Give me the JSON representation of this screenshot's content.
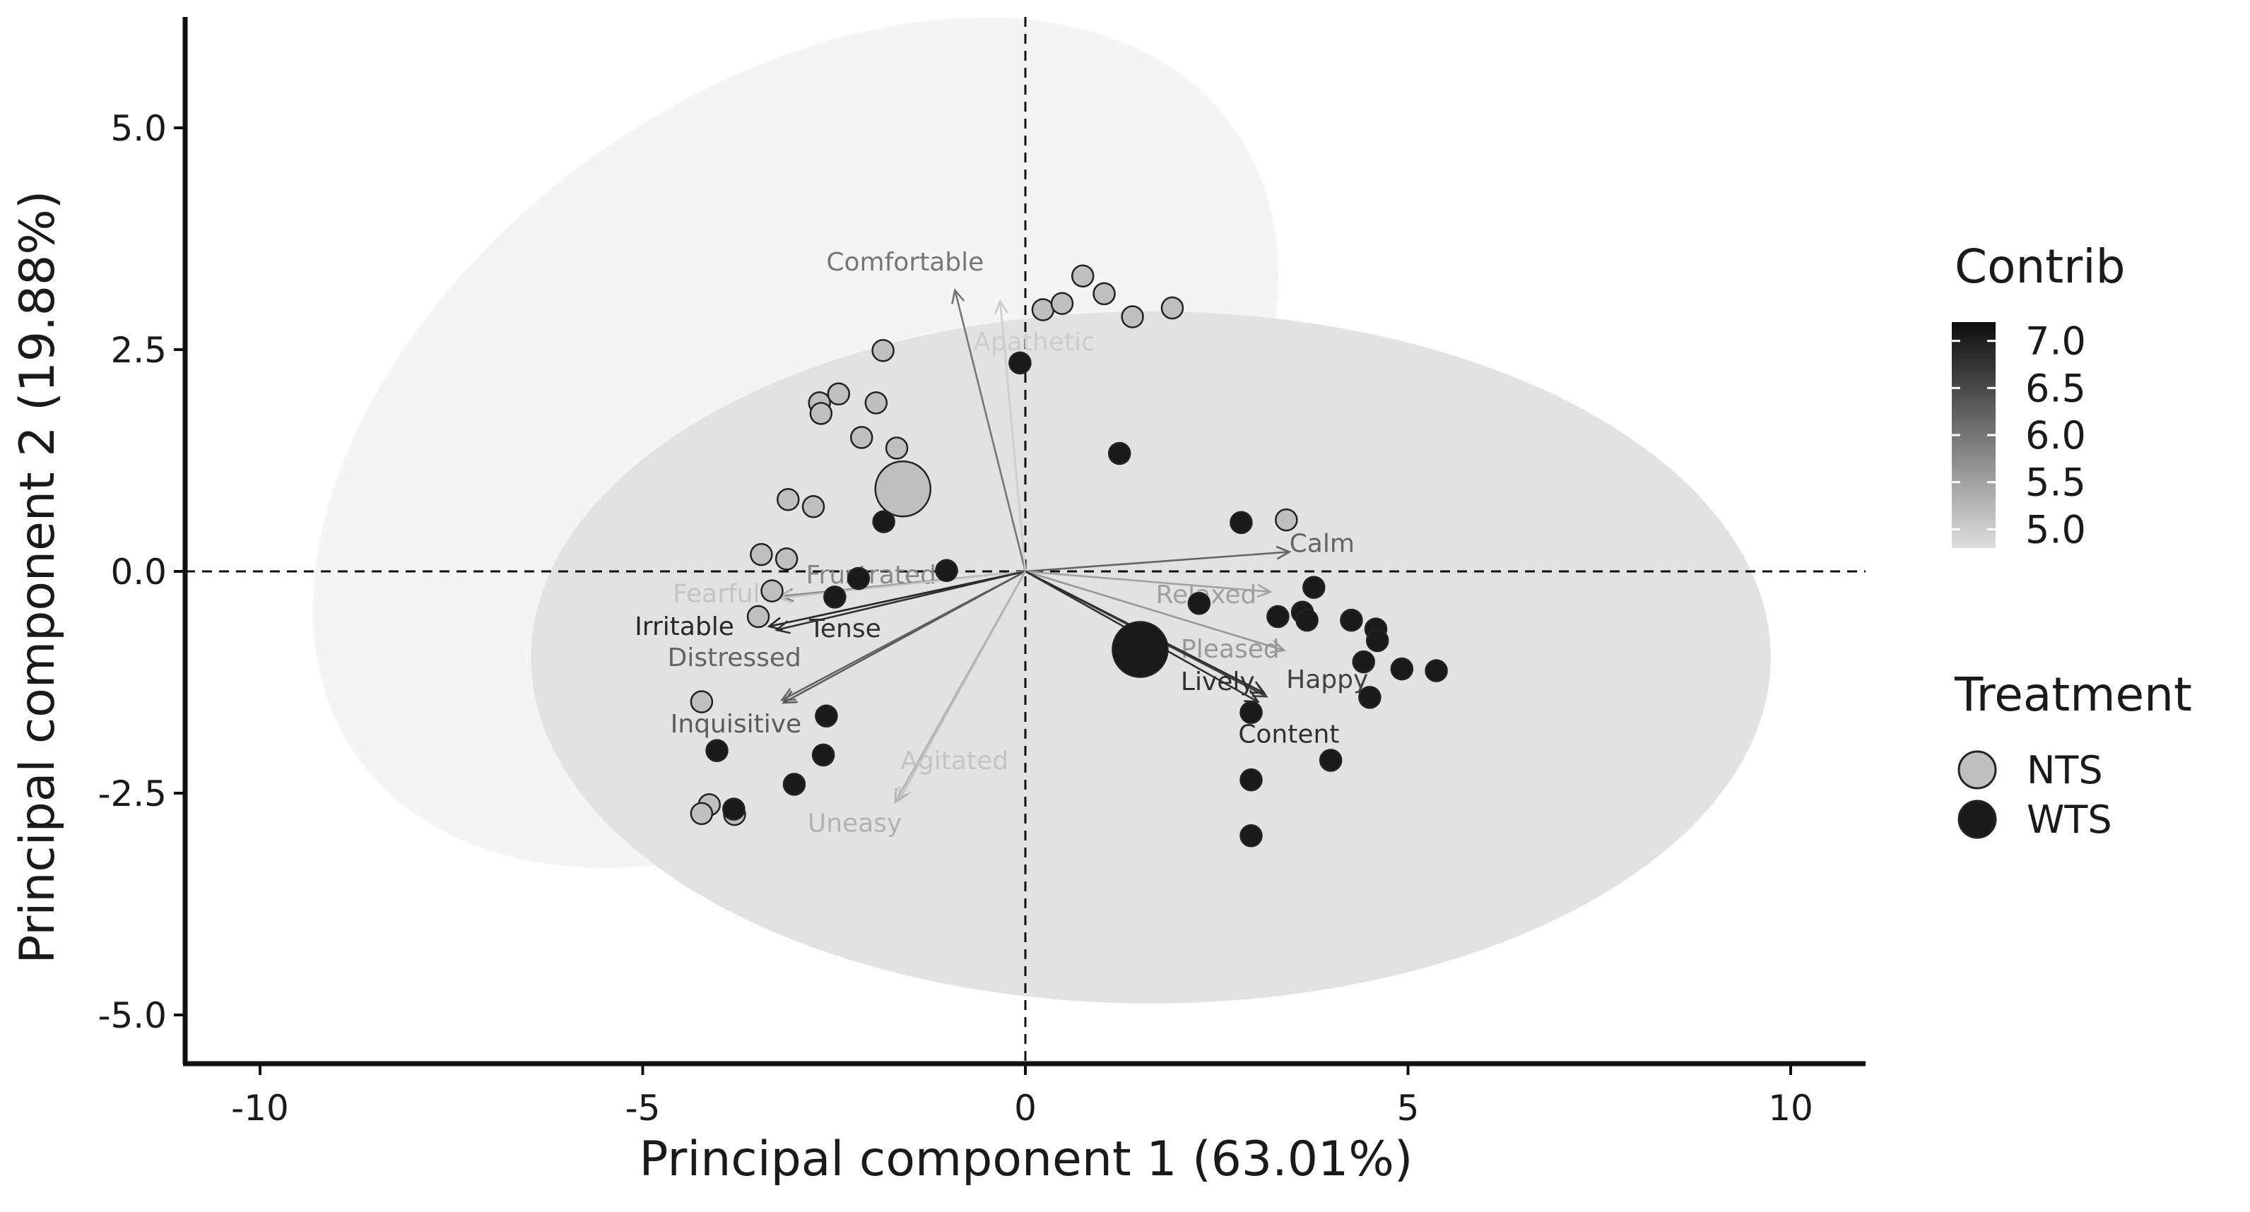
{
  "chart_data": {
    "type": "scatter",
    "subtype": "pca-biplot",
    "xlabel": "Principal component 1 (63.01%)",
    "ylabel": "Principal component 2 (19.88%)",
    "xlim": [
      -11,
      11
    ],
    "ylim": [
      -5.5,
      6.2
    ],
    "x_ticks": [
      -10,
      -5,
      0,
      5,
      10
    ],
    "x_tick_labels": [
      "-10",
      "-5",
      "0",
      "5",
      "10"
    ],
    "y_ticks": [
      5.0,
      2.5,
      0.0,
      -2.5,
      -5.0
    ],
    "y_tick_labels": [
      "5.0",
      "2.5",
      "0.0",
      "-2.5",
      "-5.0"
    ],
    "grid": false,
    "reference_lines": [
      "x = 0 (dashed)",
      "y = 0 (dashed)"
    ],
    "ellipses": [
      {
        "group": "NTS",
        "center": [
          -3.0,
          1.45
        ],
        "rx": 7.05,
        "ry": 3.95,
        "rotation_deg": 36,
        "fill": "#f3f4f3"
      },
      {
        "group": "WTS",
        "center": [
          1.64,
          -0.97
        ],
        "rx": 8.1,
        "ry": 3.9,
        "rotation_deg": 0,
        "fill": "#e2e2e2"
      }
    ],
    "legend_contrib": {
      "title": "Contrib",
      "labels": [
        "7.0",
        "6.5",
        "6.0",
        "5.5",
        "5.0"
      ],
      "range": [
        4.8,
        7.2
      ],
      "color_high": "#0d0d0d",
      "color_low": "#dedede"
    },
    "legend_treatment": {
      "title": "Treatment",
      "items": [
        {
          "label": "NTS",
          "color": "#bfbfbf"
        },
        {
          "label": "WTS",
          "color": "#1a1a1a"
        }
      ]
    },
    "variables": [
      {
        "name": "Comfortable",
        "x": -0.92,
        "y": 3.17,
        "contrib": 6.0
      },
      {
        "name": "Apathetic",
        "x": -0.33,
        "y": 3.05,
        "contrib": 5.0
      },
      {
        "name": "Calm",
        "x": 3.45,
        "y": 0.22,
        "contrib": 6.2
      },
      {
        "name": "Relaxed",
        "x": 3.2,
        "y": -0.23,
        "contrib": 5.5
      },
      {
        "name": "Pleased",
        "x": 3.38,
        "y": -0.89,
        "contrib": 5.6
      },
      {
        "name": "Happy",
        "x": 3.15,
        "y": -1.41,
        "contrib": 6.6
      },
      {
        "name": "Lively",
        "x": 3.12,
        "y": -1.37,
        "contrib": 6.8
      },
      {
        "name": "Content",
        "x": 3.04,
        "y": -1.47,
        "contrib": 6.8
      },
      {
        "name": "Frustrated",
        "x": -3.2,
        "y": -0.28,
        "contrib": 5.8
      },
      {
        "name": "Fearful",
        "x": -3.22,
        "y": -0.3,
        "contrib": 5.1
      },
      {
        "name": "Irritable",
        "x": -3.35,
        "y": -0.62,
        "contrib": 6.9
      },
      {
        "name": "Tense",
        "x": -3.25,
        "y": -0.66,
        "contrib": 6.8
      },
      {
        "name": "Distressed",
        "x": -3.18,
        "y": -1.45,
        "contrib": 6.2
      },
      {
        "name": "Inquisitive",
        "x": -3.16,
        "y": -1.48,
        "contrib": 6.3
      },
      {
        "name": "Agitated",
        "x": -1.65,
        "y": -2.58,
        "contrib": 5.1
      },
      {
        "name": "Uneasy",
        "x": -1.7,
        "y": -2.6,
        "contrib": 5.3
      }
    ],
    "series": [
      {
        "name": "NTS",
        "color": "#bfbfbf",
        "points": [
          [
            0.75,
            3.33
          ],
          [
            0.23,
            2.95
          ],
          [
            0.48,
            3.02
          ],
          [
            1.03,
            3.13
          ],
          [
            1.4,
            2.87
          ],
          [
            1.92,
            2.97
          ],
          [
            -1.86,
            2.49
          ],
          [
            -2.69,
            1.9
          ],
          [
            -2.44,
            2.0
          ],
          [
            -1.95,
            1.9
          ],
          [
            -2.67,
            1.78
          ],
          [
            -2.14,
            1.51
          ],
          [
            -1.68,
            1.39
          ],
          [
            -1.6,
            0.93
          ],
          [
            -3.1,
            0.81
          ],
          [
            -2.77,
            0.73
          ],
          [
            3.41,
            0.58
          ],
          [
            -3.45,
            0.19
          ],
          [
            -3.12,
            0.14
          ],
          [
            -3.31,
            -0.22
          ],
          [
            -3.49,
            -0.51
          ],
          [
            -4.23,
            -1.47
          ],
          [
            -4.13,
            -2.63
          ],
          [
            -4.23,
            -2.73
          ],
          [
            -3.8,
            -2.74
          ]
        ],
        "sizes": [
          1,
          1,
          1,
          1,
          1,
          1,
          1,
          1,
          1,
          1,
          1,
          1,
          1,
          2.6,
          1,
          1,
          1,
          1,
          1,
          1,
          1,
          1,
          1,
          1,
          1
        ]
      },
      {
        "name": "WTS",
        "color": "#1a1a1a",
        "points": [
          [
            -0.07,
            2.35
          ],
          [
            1.23,
            1.33
          ],
          [
            -1.85,
            0.56
          ],
          [
            2.82,
            0.55
          ],
          [
            -1.03,
            0.01
          ],
          [
            -2.18,
            -0.08
          ],
          [
            -2.49,
            -0.29
          ],
          [
            3.77,
            -0.18
          ],
          [
            2.27,
            -0.36
          ],
          [
            3.3,
            -0.51
          ],
          [
            3.62,
            -0.46
          ],
          [
            3.68,
            -0.55
          ],
          [
            4.26,
            -0.55
          ],
          [
            4.58,
            -0.65
          ],
          [
            4.6,
            -0.78
          ],
          [
            1.5,
            -0.88
          ],
          [
            4.42,
            -1.02
          ],
          [
            4.92,
            -1.1
          ],
          [
            5.37,
            -1.12
          ],
          [
            4.5,
            -1.42
          ],
          [
            2.95,
            -1.59
          ],
          [
            -2.6,
            -1.63
          ],
          [
            3.99,
            -2.13
          ],
          [
            -4.03,
            -2.02
          ],
          [
            -2.64,
            -2.07
          ],
          [
            2.95,
            -2.35
          ],
          [
            -3.02,
            -2.4
          ],
          [
            -3.81,
            -2.68
          ],
          [
            2.95,
            -2.98
          ]
        ],
        "sizes": [
          1,
          1,
          1,
          1,
          1,
          1,
          1,
          1,
          1,
          1,
          1,
          1,
          1,
          1,
          1,
          2.6,
          1,
          1,
          1,
          1,
          1,
          1,
          1,
          1,
          1,
          1,
          1,
          1,
          1
        ]
      }
    ]
  }
}
